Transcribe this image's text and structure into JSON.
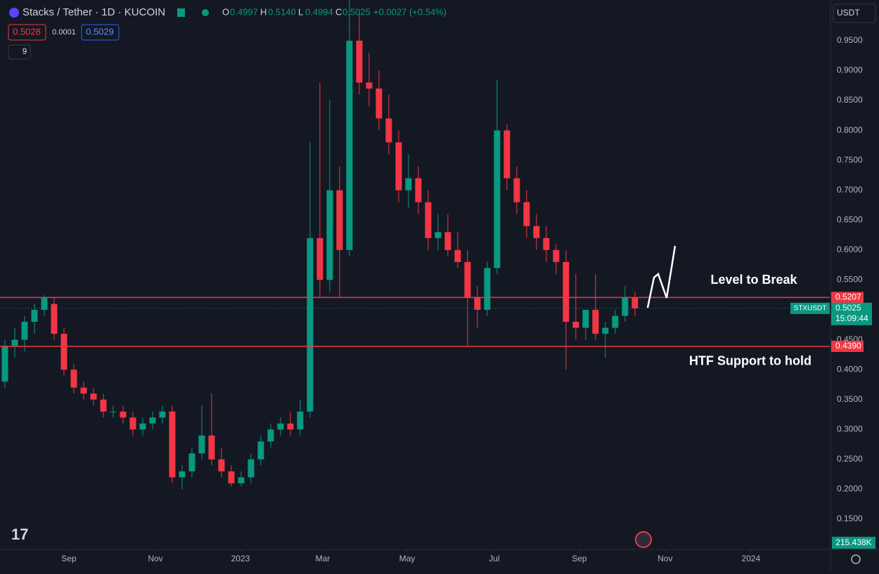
{
  "header": {
    "title": "Stacks / Tether · 1D · KUCOIN",
    "o_label": "O",
    "o": "0.4997",
    "h_label": "H",
    "h": "0.5140",
    "l_label": "L",
    "l": "0.4994",
    "c_label": "C",
    "c": "0.5025",
    "change": "+0.0027 (+0.54%)",
    "bid": "0.5028",
    "spread": "0.0001",
    "ask": "0.5029",
    "indicators": "9",
    "currency": "USDT",
    "volume_label": "215.438K"
  },
  "chart_data": {
    "type": "candlestick",
    "ylim": [
      0.0995,
      1.018
    ],
    "xlim": [
      0,
      84.3
    ],
    "yticks": [
      {
        "value": 0.95,
        "label": "0.9500"
      },
      {
        "value": 0.9,
        "label": "0.9000"
      },
      {
        "value": 0.85,
        "label": "0.8500"
      },
      {
        "value": 0.8,
        "label": "0.8000"
      },
      {
        "value": 0.75,
        "label": "0.7500"
      },
      {
        "value": 0.7,
        "label": "0.7000"
      },
      {
        "value": 0.65,
        "label": "0.6500"
      },
      {
        "value": 0.6,
        "label": "0.6000"
      },
      {
        "value": 0.55,
        "label": "0.5500"
      },
      {
        "value": 0.5,
        "label": "0.5000"
      },
      {
        "value": 0.45,
        "label": "0.4500"
      },
      {
        "value": 0.4,
        "label": "0.4000"
      },
      {
        "value": 0.35,
        "label": "0.3500"
      },
      {
        "value": 0.3,
        "label": "0.3000"
      },
      {
        "value": 0.25,
        "label": "0.2500"
      },
      {
        "value": 0.2,
        "label": "0.2000"
      },
      {
        "value": 0.15,
        "label": "0.1500"
      }
    ],
    "xticks": [
      {
        "value": 7.0,
        "label": "Sep"
      },
      {
        "value": 15.79,
        "label": "Nov"
      },
      {
        "value": 24.43,
        "label": "2023"
      },
      {
        "value": 32.79,
        "label": "Mar"
      },
      {
        "value": 41.36,
        "label": "May"
      },
      {
        "value": 50.21,
        "label": "Jul"
      },
      {
        "value": 58.86,
        "label": "Sep"
      },
      {
        "value": 67.57,
        "label": "Nov"
      },
      {
        "value": 76.29,
        "label": "2024"
      }
    ],
    "up_color": "#089981",
    "down_color": "#f23645",
    "open": [
      0.38,
      0.44,
      0.45,
      0.48,
      0.5,
      0.51,
      0.46,
      0.4,
      0.37,
      0.36,
      0.35,
      0.33,
      0.33,
      0.32,
      0.3,
      0.31,
      0.32,
      0.33,
      0.22,
      0.23,
      0.26,
      0.29,
      0.25,
      0.23,
      0.21,
      0.22,
      0.25,
      0.28,
      0.3,
      0.31,
      0.3,
      0.33,
      0.62,
      0.55,
      0.7,
      0.6,
      0.95,
      0.88,
      0.87,
      0.82,
      0.78,
      0.7,
      0.72,
      0.68,
      0.62,
      0.63,
      0.6,
      0.58,
      0.52,
      0.5,
      0.57,
      0.8,
      0.72,
      0.68,
      0.64,
      0.62,
      0.6,
      0.58,
      0.48,
      0.47,
      0.5,
      0.46,
      0.47,
      0.49,
      0.52
    ],
    "high": [
      0.45,
      0.47,
      0.49,
      0.51,
      0.525,
      0.52,
      0.47,
      0.41,
      0.38,
      0.37,
      0.36,
      0.34,
      0.34,
      0.33,
      0.32,
      0.33,
      0.34,
      0.34,
      0.24,
      0.27,
      0.34,
      0.36,
      0.27,
      0.24,
      0.23,
      0.26,
      0.29,
      0.31,
      0.32,
      0.33,
      0.35,
      0.78,
      0.88,
      0.85,
      0.74,
      1.1,
      1.0,
      0.93,
      0.9,
      0.86,
      0.8,
      0.76,
      0.74,
      0.7,
      0.66,
      0.66,
      0.63,
      0.6,
      0.54,
      0.58,
      0.885,
      0.81,
      0.74,
      0.7,
      0.66,
      0.64,
      0.61,
      0.6,
      0.56,
      0.5,
      0.56,
      0.48,
      0.5,
      0.54,
      0.53
    ],
    "low": [
      0.37,
      0.42,
      0.43,
      0.46,
      0.49,
      0.45,
      0.39,
      0.36,
      0.35,
      0.34,
      0.32,
      0.32,
      0.31,
      0.29,
      0.29,
      0.3,
      0.31,
      0.21,
      0.2,
      0.22,
      0.25,
      0.24,
      0.22,
      0.205,
      0.205,
      0.21,
      0.24,
      0.27,
      0.29,
      0.29,
      0.29,
      0.32,
      0.52,
      0.53,
      0.52,
      0.59,
      0.86,
      0.84,
      0.8,
      0.76,
      0.68,
      0.67,
      0.66,
      0.6,
      0.6,
      0.59,
      0.57,
      0.44,
      0.47,
      0.49,
      0.56,
      0.7,
      0.66,
      0.62,
      0.6,
      0.58,
      0.56,
      0.4,
      0.45,
      0.45,
      0.45,
      0.42,
      0.46,
      0.48,
      0.49
    ],
    "close": [
      0.44,
      0.45,
      0.48,
      0.5,
      0.52,
      0.46,
      0.4,
      0.37,
      0.36,
      0.35,
      0.33,
      0.33,
      0.32,
      0.3,
      0.31,
      0.32,
      0.33,
      0.22,
      0.23,
      0.26,
      0.29,
      0.25,
      0.23,
      0.21,
      0.22,
      0.25,
      0.28,
      0.3,
      0.31,
      0.3,
      0.33,
      0.62,
      0.55,
      0.7,
      0.6,
      0.95,
      0.88,
      0.87,
      0.82,
      0.78,
      0.7,
      0.72,
      0.68,
      0.62,
      0.63,
      0.6,
      0.58,
      0.52,
      0.5,
      0.57,
      0.8,
      0.72,
      0.68,
      0.64,
      0.62,
      0.6,
      0.58,
      0.48,
      0.47,
      0.5,
      0.46,
      0.47,
      0.49,
      0.52,
      0.5025
    ],
    "levels": [
      {
        "value": 0.5207,
        "color": "#f23645",
        "annotation": "Level to Break"
      },
      {
        "value": 0.439,
        "label": "0.4390",
        "color": "#f23645",
        "annotation": "HTF Support to hold"
      }
    ],
    "last_price": {
      "symbol": "STXUSDT",
      "value": 0.5025,
      "countdown": "15:09:44",
      "color": "#089981"
    }
  }
}
